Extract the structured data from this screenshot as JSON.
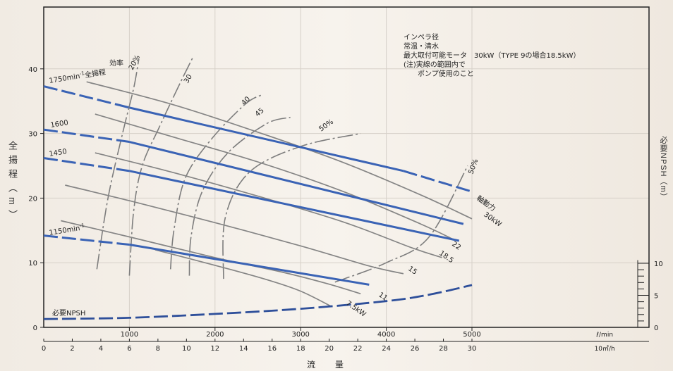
{
  "chart_data": {
    "type": "line",
    "title": "",
    "ylabel_left": "全揚程（m）",
    "ylabel_right": "必要NPSH（m）",
    "xlabel": "流量",
    "x_unit_top": "ℓ/min",
    "x_unit_bottom": "10㎥/h",
    "xlim": [
      0,
      7500
    ],
    "ylim": [
      0,
      50
    ],
    "npsh_ylim": [
      0,
      10
    ],
    "x_ticks_top": [
      "1000",
      "2000",
      "3000",
      "4000",
      "5000"
    ],
    "x_ticks_bottom": [
      "0",
      "2",
      "4",
      "6",
      "8",
      "10",
      "12",
      "14",
      "16",
      "18",
      "20",
      "22",
      "24",
      "26",
      "28",
      "30"
    ],
    "y_ticks": [
      "0",
      "10",
      "20",
      "30",
      "40"
    ],
    "npsh_ticks": [
      "0",
      "5",
      "10"
    ],
    "grid": true,
    "notes": [
      "インペラ径",
      "常温・清水",
      "最大取付可能モータ　30kW（TYPE 9の場合18.5kW）",
      "(注)実線の範囲内で",
      "　　ポンプ使用のこと"
    ],
    "efficiency_label": "効率",
    "shaft_power_label": "軸動力",
    "head_curves": [
      {
        "name": "1750min⁻¹全揚程",
        "label_prefix": "1750min",
        "label_sup": "-1",
        "label_suffix": "全揚程",
        "x": [
          0,
          1000,
          4200,
          5000
        ],
        "y": [
          37.3,
          34.0,
          24.2,
          21.0
        ],
        "solid": [
          1000,
          4200
        ]
      },
      {
        "name": "1600",
        "x": [
          0,
          1000,
          4900
        ],
        "y": [
          30.6,
          28.7,
          16.0
        ],
        "solid": [
          1000,
          4900
        ]
      },
      {
        "name": "1450",
        "x": [
          0,
          1000,
          4850
        ],
        "y": [
          26.2,
          24.2,
          13.4
        ],
        "solid": [
          1000,
          4850
        ]
      },
      {
        "name": "1150min⁻¹",
        "label_prefix": "1150min",
        "label_sup": "-1",
        "label_suffix": "",
        "x": [
          0,
          1000,
          3800
        ],
        "y": [
          14.2,
          12.8,
          6.6
        ],
        "solid": [
          1000,
          3800
        ]
      }
    ],
    "npsh_curve": {
      "name": "必要NPSH",
      "x": [
        0,
        1000,
        2000,
        3000,
        4000,
        4500,
        5000
      ],
      "y": [
        1.3,
        1.5,
        2.1,
        2.9,
        4.1,
        5.1,
        6.6
      ]
    },
    "shaft_power_curves": [
      {
        "name": "30kW",
        "x": [
          500,
          1500,
          2500,
          3500,
          4400,
          5000
        ],
        "y": [
          38,
          34.5,
          30.2,
          25.5,
          20.5,
          16.8
        ]
      },
      {
        "name": "22",
        "x": [
          600,
          1500,
          2500,
          3500,
          4400,
          4800
        ],
        "y": [
          33,
          29.5,
          25.6,
          21.0,
          16.0,
          13.5
        ]
      },
      {
        "name": "18.5",
        "x": [
          600,
          1500,
          2500,
          3500,
          4300,
          4650
        ],
        "y": [
          27,
          24,
          20.3,
          16.3,
          12.3,
          10.8
        ]
      },
      {
        "name": "15",
        "x": [
          250,
          1000,
          2000,
          3000,
          3800,
          4200
        ],
        "y": [
          22,
          19.6,
          16.2,
          12.6,
          9.5,
          8.3
        ]
      },
      {
        "name": "11",
        "x": [
          200,
          1000,
          2000,
          2800,
          3300,
          3700
        ],
        "y": [
          16.5,
          14.0,
          10.8,
          8.5,
          6.8,
          5.2
        ]
      },
      {
        "name": "7.5kW",
        "x": [
          1300,
          2000,
          2600,
          3000,
          3350
        ],
        "y": [
          12.0,
          9.6,
          7.4,
          5.6,
          3.3
        ]
      }
    ],
    "efficiency_curves": [
      {
        "name": "20%",
        "x": [
          620,
          750,
          920,
          1050,
          1110
        ],
        "y": [
          9,
          20,
          30,
          37,
          41.5
        ]
      },
      {
        "name": "30",
        "x": [
          1000,
          1050,
          1150,
          1350,
          1600,
          1750
        ],
        "y": [
          8,
          18,
          25,
          31,
          38,
          42
        ]
      },
      {
        "name": "40",
        "x": [
          1480,
          1520,
          1650,
          1950,
          2350,
          2550
        ],
        "y": [
          9,
          15,
          23,
          29,
          34.5,
          36
        ]
      },
      {
        "name": "45",
        "x": [
          1700,
          1720,
          1850,
          2150,
          2600,
          2880
        ],
        "y": [
          8,
          14,
          21,
          27,
          31.5,
          32.5
        ]
      },
      {
        "name": "50%",
        "x": [
          2100,
          2120,
          2400,
          3000,
          3700
        ],
        "y": [
          7.5,
          17,
          24,
          28,
          30
        ]
      },
      {
        "name": "50%",
        "x": [
          3400,
          4000,
          4500,
          4950
        ],
        "y": [
          7,
          10,
          14,
          25
        ]
      }
    ]
  }
}
